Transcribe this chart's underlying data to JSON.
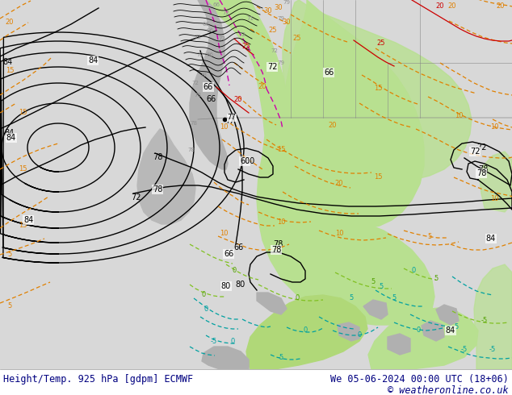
{
  "title_left": "Height/Temp. 925 hPa [gdpm] ECMWF",
  "title_right": "We 05-06-2024 00:00 UTC (18+06)",
  "copyright": "© weatheronline.co.uk",
  "footer_text_color": "#000080",
  "fig_width": 6.34,
  "fig_height": 4.9,
  "dpi": 100,
  "map_area": [
    0,
    0,
    634,
    458
  ],
  "footer_area": [
    0,
    458,
    634,
    32
  ],
  "bg_light_gray": "#d8d8d8",
  "bg_white": "#ffffff",
  "green_light": "#b8e08a",
  "green_medium": "#a0d060",
  "gray_terrain": "#b0b0b0",
  "color_geopotential": "#000000",
  "color_temp_orange": "#e08000",
  "color_temp_cyan": "#00a0a0",
  "color_temp_red": "#cc0000",
  "color_magenta": "#cc00aa",
  "color_green_line": "#80c000",
  "font_size_footer": 9,
  "font_size_labels": 7
}
